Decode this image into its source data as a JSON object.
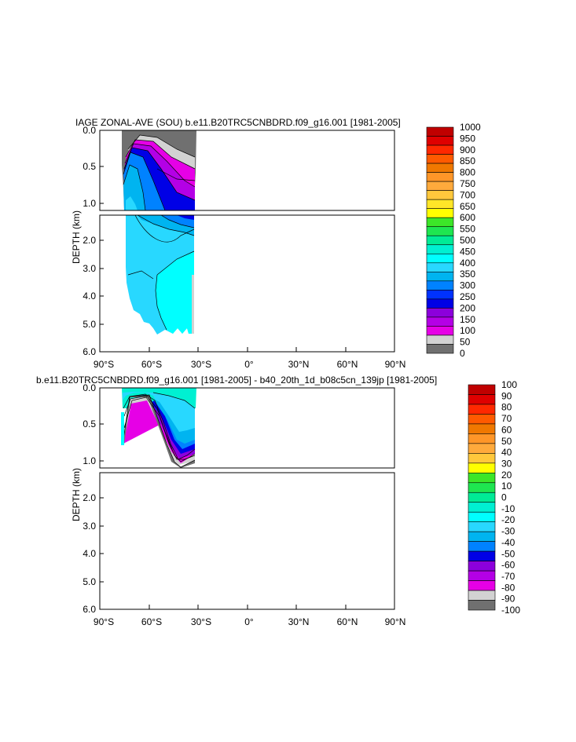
{
  "chart_data": [
    {
      "type": "contour",
      "title": "IAGE ZONAL-AVE (SOU) b.e11.B20TRC5CNBDRD.f09_g16.001 [1981-2005]",
      "xlabel": "",
      "ylabel": "DEPTH (km)",
      "x_tick_labels": [
        "90°S",
        "60°S",
        "30°S",
        "0°",
        "30°N",
        "60°N",
        "90°N"
      ],
      "y_tick_labels_upper": [
        "0.0",
        "0.5",
        "1.0"
      ],
      "y_tick_labels_lower": [
        "2.0",
        "3.0",
        "4.0",
        "5.0",
        "6.0"
      ],
      "xlim": [
        -90,
        90
      ],
      "ylim": [
        0,
        6
      ],
      "data_extent": {
        "lat": [
          -77,
          -33
        ],
        "depth_km": [
          0,
          5.4
        ]
      },
      "colorbar_labels": [
        "1000",
        "950",
        "900",
        "850",
        "800",
        "750",
        "700",
        "650",
        "600",
        "550",
        "500",
        "450",
        "400",
        "350",
        "300",
        "250",
        "200",
        "150",
        "100",
        "50",
        "0"
      ],
      "colorbar_colors": [
        "#c00000",
        "#df0000",
        "#ff2800",
        "#ff5a00",
        "#f07800",
        "#ff9628",
        "#ffaa3c",
        "#ffc83c",
        "#ffe628",
        "#ffff00",
        "#3ce628",
        "#1ee650",
        "#00eb96",
        "#00f0d2",
        "#00ffff",
        "#28d8ff",
        "#00b4f0",
        "#0082ff",
        "#0032ff",
        "#0000e6",
        "#8c00dc",
        "#b400e6",
        "#e600e6",
        "#d2d2d2",
        "#707070"
      ]
    },
    {
      "type": "contour",
      "title": "b.e11.B20TRC5CNBDRD.f09_g16.001 [1981-2005] - b40_20th_1d_b08c5cn_139jp [1981-2005]",
      "xlabel": "",
      "ylabel": "DEPTH (km)",
      "x_tick_labels": [
        "90°S",
        "60°S",
        "30°S",
        "0°",
        "30°N",
        "60°N",
        "90°N"
      ],
      "y_tick_labels_upper": [
        "0.0",
        "0.5",
        "1.0"
      ],
      "y_tick_labels_lower": [
        "2.0",
        "3.0",
        "4.0",
        "5.0",
        "6.0"
      ],
      "xlim": [
        -90,
        90
      ],
      "ylim": [
        0,
        6
      ],
      "data_extent": {
        "lat": [
          -76,
          -33
        ],
        "depth_km": [
          0,
          1.05
        ]
      },
      "colorbar_labels": [
        "100",
        "90",
        "80",
        "70",
        "60",
        "50",
        "40",
        "30",
        "20",
        "10",
        "0",
        "-10",
        "-20",
        "-30",
        "-40",
        "-50",
        "-60",
        "-70",
        "-80",
        "-90",
        "-100"
      ],
      "colorbar_colors": [
        "#c00000",
        "#df0000",
        "#ff2800",
        "#ff5a00",
        "#f07800",
        "#ff9628",
        "#ffaa3c",
        "#ffc83c",
        "#ffff00",
        "#3ce628",
        "#1ee650",
        "#00eb96",
        "#00f0d2",
        "#00ffff",
        "#28d8ff",
        "#00b4f0",
        "#0082ff",
        "#0000e6",
        "#8c00dc",
        "#b400e6",
        "#e600e6",
        "#d2d2d2",
        "#707070"
      ]
    }
  ]
}
